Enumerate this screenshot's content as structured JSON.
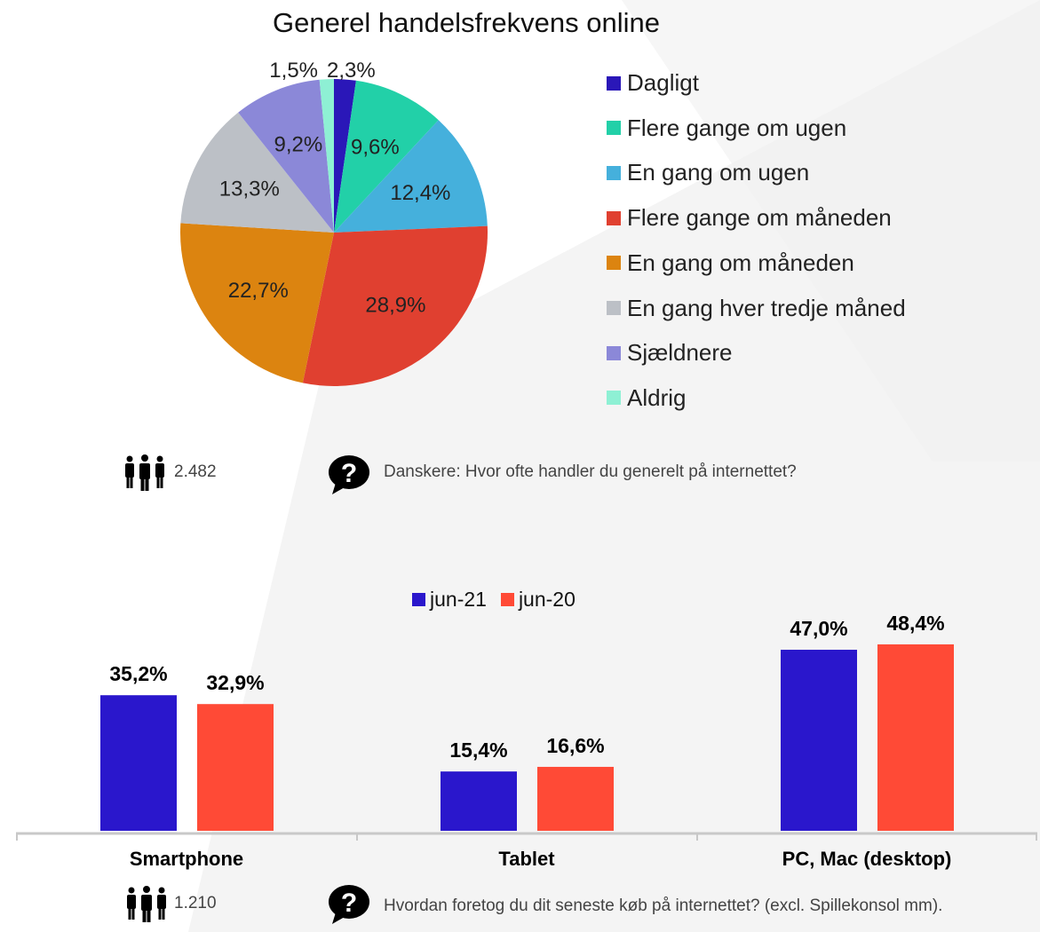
{
  "chart_data": [
    {
      "type": "pie",
      "title": "Generel handelsfrekvens online",
      "legend_position": "right",
      "slices": [
        {
          "label": "Dagligt",
          "value": 2.3,
          "value_label": "2,3%",
          "color": "#2a17b8"
        },
        {
          "label": "Flere gange om ugen",
          "value": 9.6,
          "value_label": "9,6%",
          "color": "#22d0a8"
        },
        {
          "label": "En gang om ugen",
          "value": 12.4,
          "value_label": "12,4%",
          "color": "#45b0dc"
        },
        {
          "label": "Flere gange om måneden",
          "value": 28.9,
          "value_label": "28,9%",
          "color": "#e04030"
        },
        {
          "label": "En gang om måneden",
          "value": 22.7,
          "value_label": "22,7%",
          "color": "#dc8410"
        },
        {
          "label": "En gang hver tredje måned",
          "value": 13.3,
          "value_label": "13,3%",
          "color": "#bcc0c6"
        },
        {
          "label": "Sjældnere",
          "value": 9.2,
          "value_label": "9,2%",
          "color": "#8b88d8"
        },
        {
          "label": "Aldrig",
          "value": 1.5,
          "value_label": "1,5%",
          "color": "#8ef0d4"
        }
      ],
      "respondents": "2.482",
      "question": "Danskere: Hvor ofte handler du generelt på internettet?"
    },
    {
      "type": "bar",
      "categories": [
        "Smartphone",
        "Tablet",
        "PC, Mac (desktop)"
      ],
      "series": [
        {
          "name": "jun-21",
          "color": "#2a17cc",
          "values": [
            35.2,
            15.4,
            47.0
          ],
          "value_labels": [
            "35,2%",
            "15,4%",
            "47,0%"
          ]
        },
        {
          "name": "jun-20",
          "color": "#ff4a36",
          "values": [
            32.9,
            16.6,
            48.4
          ],
          "value_labels": [
            "32,9%",
            "16,6%",
            "48,4%"
          ]
        }
      ],
      "legend_position": "top-center",
      "ylim": [
        0,
        50
      ],
      "grid": false,
      "respondents": "1.210",
      "question": "Hvordan foretog du dit seneste køb på internettet? (excl. Spillekonsol mm)."
    }
  ]
}
